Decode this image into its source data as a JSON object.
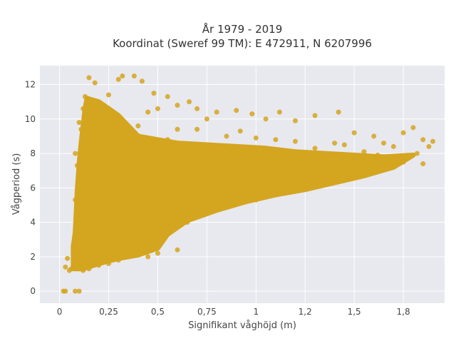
{
  "chart_data": {
    "type": "scatter",
    "title": "År 1979 - 2019",
    "subtitle": "Koordinat (Sweref 99 TM): E 472911, N 6207996",
    "xlabel": "Signifikant våghöjd (m)",
    "ylabel": "Vågperiod (s)",
    "xlim": [
      -0.1,
      1.96
    ],
    "ylim": [
      -0.7,
      13.1
    ],
    "x_ticks": [
      0,
      0.25,
      0.5,
      0.75,
      1,
      1.25,
      1.5,
      1.75
    ],
    "x_tick_labels": [
      "0",
      "0,25",
      "0,5",
      "0,75",
      "1",
      "1,2",
      "1,5",
      "1,8"
    ],
    "y_ticks": [
      0,
      2,
      4,
      6,
      8,
      10,
      12
    ],
    "y_tick_labels": [
      "0",
      "2",
      "4",
      "6",
      "8",
      "10",
      "12"
    ],
    "grid": true,
    "marker_color": "#D4A51F",
    "background_color": "#E8E8EF",
    "series": [
      {
        "points": [
          [
            0.02,
            0.0
          ],
          [
            0.03,
            0.0
          ],
          [
            0.08,
            0.0
          ],
          [
            0.1,
            0.0
          ],
          [
            0.03,
            1.4
          ],
          [
            0.04,
            1.9
          ],
          [
            0.05,
            1.2
          ],
          [
            0.06,
            1.3
          ],
          [
            0.07,
            1.9
          ],
          [
            0.07,
            2.5
          ],
          [
            0.08,
            1.6
          ],
          [
            0.08,
            2.6
          ],
          [
            0.09,
            3.0
          ],
          [
            0.09,
            1.9
          ],
          [
            0.09,
            5.5
          ],
          [
            0.08,
            5.3
          ],
          [
            0.1,
            4.0
          ],
          [
            0.1,
            6.0
          ],
          [
            0.09,
            7.3
          ],
          [
            0.08,
            8.0
          ],
          [
            0.1,
            9.8
          ],
          [
            0.11,
            9.4
          ],
          [
            0.12,
            10.6
          ],
          [
            0.13,
            11.3
          ],
          [
            0.15,
            12.4
          ],
          [
            0.18,
            12.1
          ],
          [
            0.2,
            11.0
          ],
          [
            0.25,
            11.4
          ],
          [
            0.3,
            12.3
          ],
          [
            0.32,
            12.5
          ],
          [
            0.38,
            12.5
          ],
          [
            0.42,
            12.2
          ],
          [
            0.48,
            11.5
          ],
          [
            0.5,
            10.6
          ],
          [
            0.55,
            11.3
          ],
          [
            0.6,
            10.8
          ],
          [
            0.66,
            11.0
          ],
          [
            0.7,
            10.6
          ],
          [
            0.75,
            10.0
          ],
          [
            0.8,
            10.4
          ],
          [
            0.9,
            10.5
          ],
          [
            0.98,
            10.3
          ],
          [
            1.05,
            10.0
          ],
          [
            1.12,
            10.4
          ],
          [
            1.2,
            9.9
          ],
          [
            1.3,
            10.2
          ],
          [
            1.42,
            10.4
          ],
          [
            1.5,
            9.2
          ],
          [
            1.6,
            9.0
          ],
          [
            1.65,
            8.6
          ],
          [
            1.7,
            8.4
          ],
          [
            1.75,
            9.2
          ],
          [
            1.8,
            9.5
          ],
          [
            1.82,
            8.0
          ],
          [
            1.85,
            8.8
          ],
          [
            1.88,
            8.4
          ],
          [
            1.9,
            8.7
          ],
          [
            1.85,
            7.4
          ],
          [
            1.75,
            7.5
          ],
          [
            1.7,
            7.2
          ],
          [
            1.6,
            6.9
          ],
          [
            1.5,
            6.6
          ],
          [
            1.35,
            6.3
          ],
          [
            1.22,
            5.9
          ],
          [
            1.1,
            5.6
          ],
          [
            1.0,
            5.3
          ],
          [
            0.85,
            4.9
          ],
          [
            0.75,
            4.5
          ],
          [
            0.65,
            4.0
          ],
          [
            0.6,
            2.4
          ],
          [
            0.5,
            2.2
          ],
          [
            0.45,
            2.0
          ],
          [
            0.4,
            2.4
          ],
          [
            0.35,
            2.0
          ],
          [
            0.3,
            1.8
          ],
          [
            0.25,
            1.6
          ],
          [
            0.2,
            1.5
          ],
          [
            0.15,
            1.3
          ],
          [
            0.12,
            1.2
          ],
          [
            0.2,
            8.7
          ],
          [
            0.3,
            8.9
          ],
          [
            0.35,
            9.3
          ],
          [
            0.15,
            9.7
          ],
          [
            0.25,
            10.4
          ],
          [
            0.4,
            9.6
          ],
          [
            0.45,
            10.4
          ],
          [
            0.55,
            8.8
          ],
          [
            0.6,
            9.4
          ],
          [
            0.7,
            9.4
          ],
          [
            0.85,
            9.0
          ],
          [
            0.92,
            9.3
          ],
          [
            1.0,
            8.9
          ],
          [
            1.1,
            8.8
          ],
          [
            1.2,
            8.7
          ],
          [
            1.3,
            8.3
          ],
          [
            1.4,
            8.6
          ],
          [
            1.45,
            8.5
          ],
          [
            1.55,
            8.1
          ],
          [
            1.62,
            7.9
          ],
          [
            1.25,
            7.0
          ],
          [
            1.1,
            6.6
          ],
          [
            0.95,
            6.0
          ],
          [
            0.8,
            5.8
          ],
          [
            0.7,
            5.2
          ],
          [
            0.3,
            4.2
          ],
          [
            0.45,
            5.1
          ],
          [
            0.55,
            6.2
          ],
          [
            0.35,
            7.1
          ],
          [
            0.2,
            6.6
          ],
          [
            0.18,
            3.7
          ],
          [
            0.22,
            2.8
          ],
          [
            0.28,
            3.4
          ],
          [
            0.14,
            5.0
          ],
          [
            0.12,
            7.7
          ],
          [
            1.0,
            7.4
          ],
          [
            1.2,
            7.9
          ],
          [
            1.4,
            7.3
          ],
          [
            0.9,
            8.3
          ],
          [
            0.75,
            7.6
          ],
          [
            0.6,
            7.8
          ],
          [
            0.5,
            8.2
          ],
          [
            0.4,
            6.8
          ],
          [
            0.65,
            6.6
          ],
          [
            0.85,
            7.0
          ]
        ]
      }
    ],
    "dense_region": {
      "left_edge": [
        [
          0.07,
          1.3
        ],
        [
          0.07,
          2.6
        ],
        [
          0.08,
          3.4
        ],
        [
          0.09,
          5.8
        ],
        [
          0.1,
          7.4
        ],
        [
          0.11,
          8.6
        ],
        [
          0.12,
          9.6
        ],
        [
          0.13,
          10.6
        ],
        [
          0.14,
          11.2
        ]
      ],
      "top_edge": [
        [
          0.14,
          11.2
        ],
        [
          0.2,
          11.0
        ],
        [
          0.25,
          10.6
        ],
        [
          0.3,
          10.2
        ],
        [
          0.35,
          9.6
        ],
        [
          0.4,
          9.0
        ],
        [
          0.5,
          8.8
        ],
        [
          0.6,
          8.6
        ],
        [
          0.75,
          8.5
        ],
        [
          0.9,
          8.4
        ],
        [
          1.05,
          8.3
        ],
        [
          1.2,
          8.1
        ],
        [
          1.35,
          8.0
        ],
        [
          1.5,
          7.9
        ],
        [
          1.65,
          7.8
        ],
        [
          1.8,
          7.9
        ]
      ],
      "bottom_edge": [
        [
          1.8,
          7.9
        ],
        [
          1.7,
          7.2
        ],
        [
          1.55,
          6.7
        ],
        [
          1.4,
          6.3
        ],
        [
          1.25,
          5.9
        ],
        [
          1.1,
          5.6
        ],
        [
          0.95,
          5.2
        ],
        [
          0.8,
          4.7
        ],
        [
          0.65,
          4.1
        ],
        [
          0.55,
          3.3
        ],
        [
          0.5,
          2.5
        ],
        [
          0.4,
          2.1
        ],
        [
          0.3,
          1.9
        ],
        [
          0.2,
          1.6
        ],
        [
          0.12,
          1.3
        ],
        [
          0.07,
          1.3
        ]
      ]
    }
  }
}
